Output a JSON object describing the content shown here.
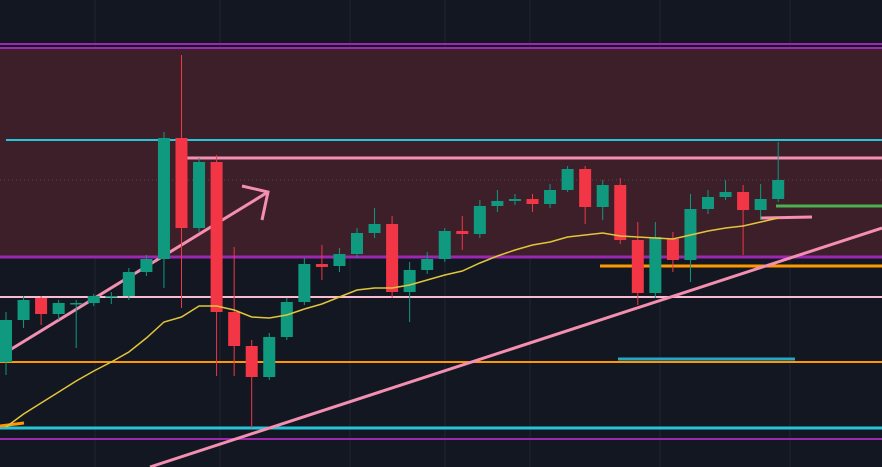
{
  "chart_data": {
    "type": "candlestick",
    "ylim": [
      0,
      467
    ],
    "up_color": "#0f9a80",
    "down_color": "#f23645",
    "ma_color": "#e2c53a",
    "open": [
      105,
      147,
      169,
      153,
      164,
      164,
      171,
      171,
      195,
      208,
      329,
      239,
      305,
      155,
      121,
      90,
      130,
      165,
      203,
      201,
      213,
      234,
      243,
      175,
      197,
      208,
      236,
      233,
      261,
      266,
      268,
      263,
      277,
      298,
      260,
      282,
      227,
      174,
      228,
      207,
      258,
      270,
      275,
      257,
      268
    ],
    "close": [
      147,
      167,
      153,
      164,
      164,
      171,
      171,
      195,
      208,
      329,
      239,
      305,
      155,
      121,
      90,
      130,
      165,
      203,
      200,
      213,
      234,
      243,
      175,
      197,
      208,
      236,
      233,
      261,
      266,
      268,
      263,
      277,
      298,
      260,
      282,
      227,
      174,
      230,
      207,
      258,
      270,
      275,
      257,
      268,
      287
    ],
    "high": [
      155,
      171,
      171,
      167,
      167,
      173,
      175,
      199,
      212,
      335,
      412,
      309,
      312,
      220,
      127,
      134,
      169,
      209,
      222,
      219,
      239,
      259,
      251,
      205,
      215,
      239,
      251,
      267,
      277,
      273,
      273,
      283,
      301,
      301,
      287,
      289,
      245,
      245,
      235,
      273,
      277,
      287,
      282,
      283,
      325
    ],
    "low": [
      92,
      139,
      142,
      147,
      119,
      161,
      163,
      167,
      191,
      179,
      159,
      235,
      91,
      91,
      39,
      87,
      127,
      162,
      187,
      195,
      209,
      229,
      169,
      145,
      193,
      205,
      217,
      229,
      255,
      262,
      255,
      259,
      275,
      243,
      247,
      223,
      162,
      169,
      195,
      185,
      253,
      267,
      212,
      247,
      265
    ],
    "ma": [
      40,
      53,
      64,
      75,
      86,
      96,
      105,
      115,
      129,
      145,
      150,
      161,
      161,
      157,
      150,
      149,
      152,
      158,
      163,
      170,
      177,
      179,
      179,
      182,
      187,
      192,
      196,
      204,
      211,
      217,
      222,
      225,
      230,
      232,
      234,
      231,
      230,
      229,
      228,
      232,
      236,
      239,
      241,
      245,
      249
    ]
  }
}
